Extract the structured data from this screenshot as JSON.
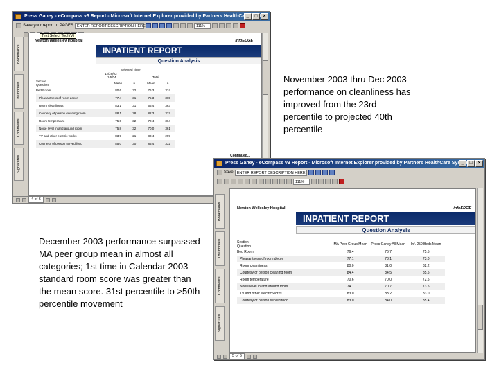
{
  "window1": {
    "title": "Press Ganey - eCompass v3 Report - Microsoft Internet Explorer provided by Partners HealthCare System",
    "save_label": "Save your report to PAGES",
    "report_desc_placeholder": "ENTER REPORT DESCRIPTION HERE",
    "go_label": "Save",
    "zoom": "111%",
    "select_tool": "Text Select Tool (V)",
    "side_tabs": [
      "Bookmarks",
      "Thumbnails",
      "Comments",
      "Signatures"
    ],
    "page_status": "4 of 6",
    "hospital": "Newton Wellesley Hospital",
    "logo": "infoEDGE",
    "banner": "INPATIENT REPORT",
    "subtitle": "Question Analysis",
    "col_group1": "Selected Time",
    "col_group2": "12/29/03",
    "col_group2b": "1/5/04",
    "col_group3": "Total",
    "headers": [
      "Section",
      "Question",
      "Mean",
      "n",
      "Mean",
      "n"
    ],
    "rows": [
      {
        "label": "Bed Room",
        "v": [
          "80.6",
          "32",
          "76.3",
          "374"
        ],
        "section": true
      },
      {
        "label": "Pleasantness of room decor",
        "v": [
          "77.4",
          "31",
          "75.3",
          "365"
        ]
      },
      {
        "label": "Room cleanliness",
        "v": [
          "83.1",
          "31",
          "66.4",
          "363"
        ]
      },
      {
        "label": "Courtesy of person cleaning room",
        "v": [
          "88.1",
          "28",
          "82.3",
          "337"
        ]
      },
      {
        "label": "Room temperature",
        "v": [
          "75.0",
          "32",
          "72.4",
          "364"
        ]
      },
      {
        "label": "Noise level in and around room",
        "v": [
          "75.8",
          "32",
          "70.0",
          "361"
        ]
      },
      {
        "label": "TV and other electric works",
        "v": [
          "83.9",
          "21",
          "80.4",
          "299"
        ]
      },
      {
        "label": "Courtesy of person served food",
        "v": [
          "85.0",
          "30",
          "85.4",
          "332"
        ]
      }
    ],
    "continued": "Continued..."
  },
  "window2": {
    "title": "Press Ganey - eCompass v3 Report - Microsoft Internet Explorer provided by Partners HealthCare System",
    "save_label": "Save",
    "report_desc_placeholder": "ENTER REPORT DESCRIPTION HERE",
    "zoom": "111%",
    "side_tabs": [
      "Bookmarks",
      "Thumbnails",
      "Comments",
      "Signatures"
    ],
    "page_status": "5 of 6",
    "hospital": "Newton Wellesley Hospital",
    "logo": "infoEDGE",
    "banner": "INPATIENT REPORT",
    "subtitle": "Question Analysis",
    "headers": [
      "Section",
      "Question",
      "MA Peer Group Mean",
      "Press Ganey All Mean",
      "Inf. 250 Beds Mean"
    ],
    "rows": [
      {
        "label": "Bed Room",
        "v": [
          "76.4",
          "76.7",
          "75.5"
        ],
        "section": true
      },
      {
        "label": "Pleasantness of room decor",
        "v": [
          "77.1",
          "78.1",
          "73.0"
        ]
      },
      {
        "label": "Room cleanliness",
        "v": [
          "80.0",
          "81.0",
          "82.2"
        ]
      },
      {
        "label": "Courtesy of person cleaning room",
        "v": [
          "84.4",
          "84.5",
          "85.5"
        ]
      },
      {
        "label": "Room temperature",
        "v": [
          "70.6",
          "70.0",
          "72.5"
        ]
      },
      {
        "label": "Noise level in and around room",
        "v": [
          "74.1",
          "70.7",
          "73.5"
        ]
      },
      {
        "label": "TV and other electric works",
        "v": [
          "83.0",
          "83.2",
          "83.0"
        ]
      },
      {
        "label": "Courtesy of person served food",
        "v": [
          "83.0",
          "84.0",
          "85.4"
        ]
      }
    ]
  },
  "note_top": "November 2003 thru Dec 2003 performance on cleanliness has improved from the 23rd percentile to projected 40th percentile",
  "note_bottom": "December 2003 performance surpassed MA peer group mean in almost all categories; 1st time in Calendar 2003 standard room score was greater than the mean score. 31st percentile to >50th percentile movement"
}
